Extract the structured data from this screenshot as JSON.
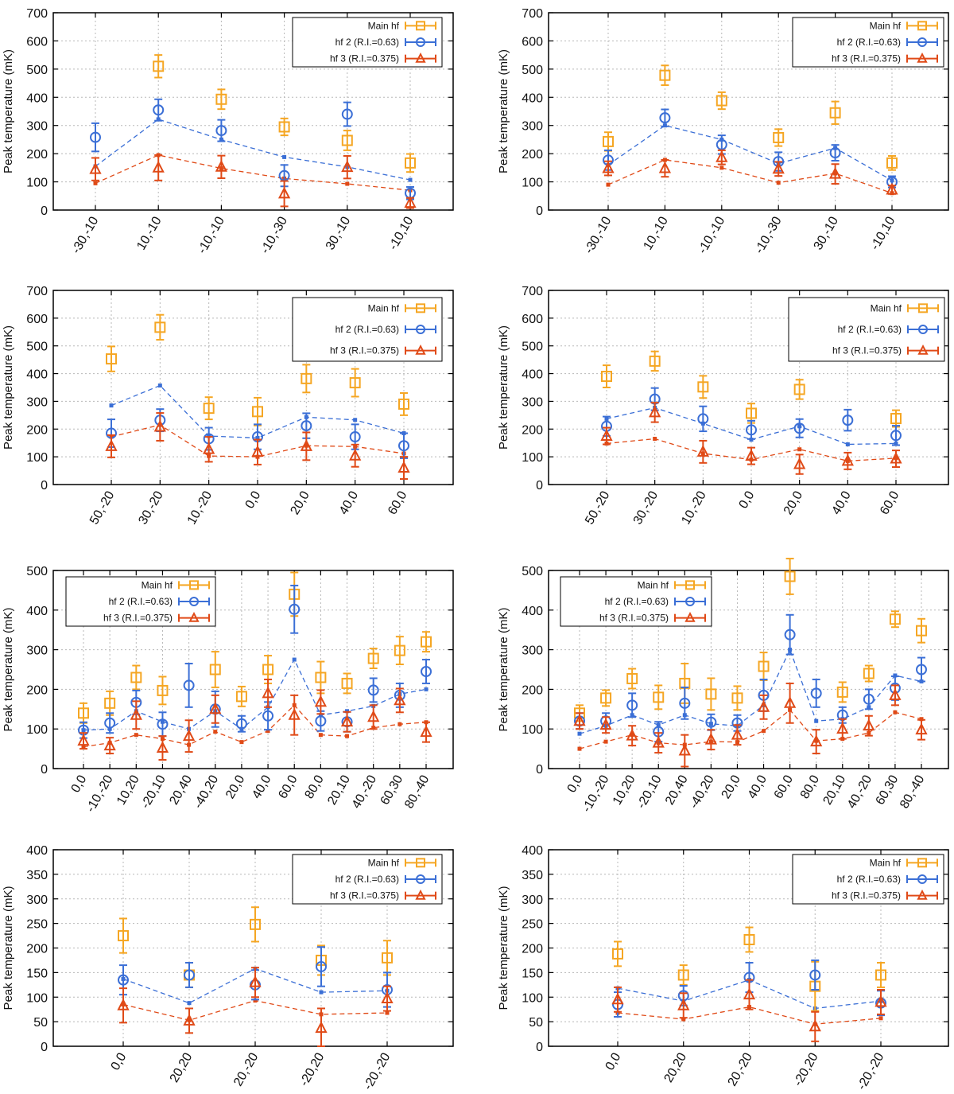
{
  "colors": {
    "main": "#f5a623",
    "hf2": "#3b6fd6",
    "hf3": "#e04a17",
    "grid": "#b8b8b8",
    "axis": "#000000"
  },
  "chart_data": [
    {
      "type": "scatter",
      "ylabel": "Peak temperature (mK)",
      "ylim": [
        0,
        700
      ],
      "yticks": [
        0,
        100,
        200,
        300,
        400,
        500,
        600,
        700
      ],
      "legend_position": "top-right",
      "categories": [
        "-30,-10",
        "10,-10",
        "-10,-10",
        "-10,-30",
        "30,-10",
        "-10,10"
      ],
      "series": [
        {
          "name": "Main hf",
          "key": "main",
          "marker": "square",
          "values": [
            null,
            510,
            393,
            295,
            247,
            167
          ],
          "errors": [
            null,
            40,
            35,
            30,
            35,
            32
          ]
        },
        {
          "name": "hf 2 (R.I.=0.63)",
          "key": "hf2",
          "marker": "circle",
          "values": [
            258,
            355,
            282,
            122,
            340,
            60
          ],
          "errors": [
            50,
            38,
            38,
            38,
            42,
            22
          ],
          "model": [
            155,
            322,
            250,
            188,
            153,
            107
          ]
        },
        {
          "name": "hf 3 (R.I.=0.375)",
          "key": "hf3",
          "marker": "triangle",
          "values": [
            145,
            150,
            153,
            58,
            152,
            25
          ],
          "errors": [
            40,
            45,
            40,
            45,
            40,
            18
          ],
          "model": [
            95,
            195,
            148,
            112,
            93,
            70
          ]
        }
      ]
    },
    {
      "type": "scatter",
      "ylabel": "Peak temperature (mK)",
      "ylim": [
        0,
        700
      ],
      "yticks": [
        0,
        100,
        200,
        300,
        400,
        500,
        600,
        700
      ],
      "legend_position": "top-right",
      "categories": [
        "-30,-10",
        "10,-10",
        "-10,-10",
        "-10,-30",
        "30,-10",
        "-10,10"
      ],
      "series": [
        {
          "name": "Main hf",
          "key": "main",
          "marker": "square",
          "values": [
            243,
            478,
            388,
            257,
            345,
            167
          ],
          "errors": [
            33,
            35,
            30,
            30,
            40,
            25
          ]
        },
        {
          "name": "hf 2 (R.I.=0.63)",
          "key": "hf2",
          "marker": "circle",
          "values": [
            177,
            327,
            232,
            172,
            203,
            100
          ],
          "errors": [
            35,
            30,
            33,
            33,
            28,
            20
          ],
          "model": [
            160,
            300,
            250,
            165,
            220,
            105
          ]
        },
        {
          "name": "hf 3 (R.I.=0.375)",
          "key": "hf3",
          "marker": "triangle",
          "values": [
            148,
            148,
            187,
            146,
            128,
            72
          ],
          "errors": [
            25,
            30,
            25,
            25,
            35,
            15
          ],
          "model": [
            90,
            178,
            150,
            97,
            130,
            60
          ]
        }
      ]
    },
    {
      "type": "scatter",
      "ylabel": "Peak temperature (mK)",
      "ylim": [
        0,
        700
      ],
      "yticks": [
        0,
        100,
        200,
        300,
        400,
        500,
        600,
        700
      ],
      "legend_position": "top-right",
      "categories": [
        "50,-20",
        "30,-20",
        "10,-20",
        "0,0",
        "20,0",
        "40,0",
        "60,0"
      ],
      "series": [
        {
          "name": "Main hf",
          "key": "main",
          "marker": "square",
          "values": [
            453,
            567,
            275,
            263,
            382,
            367,
            290
          ],
          "errors": [
            45,
            45,
            40,
            50,
            50,
            50,
            40
          ]
        },
        {
          "name": "hf 2 (R.I.=0.63)",
          "key": "hf2",
          "marker": "circle",
          "values": [
            185,
            232,
            165,
            172,
            212,
            172,
            140
          ],
          "errors": [
            50,
            40,
            40,
            45,
            45,
            45,
            45
          ],
          "model": [
            285,
            357,
            175,
            168,
            243,
            233,
            185
          ]
        },
        {
          "name": "hf 3 (R.I.=0.375)",
          "key": "hf3",
          "marker": "triangle",
          "values": [
            138,
            208,
            127,
            117,
            138,
            104,
            60
          ],
          "errors": [
            40,
            50,
            45,
            45,
            50,
            40,
            40
          ],
          "model": [
            172,
            215,
            103,
            100,
            140,
            137,
            112
          ]
        }
      ]
    },
    {
      "type": "scatter",
      "ylabel": "Peak temperature (mK)",
      "ylim": [
        0,
        700
      ],
      "yticks": [
        0,
        100,
        200,
        300,
        400,
        500,
        600,
        700
      ],
      "legend_position": "top-right",
      "categories": [
        "50,-20",
        "30,-20",
        "10,-20",
        "0,0",
        "20,0",
        "40,0",
        "60,0"
      ],
      "series": [
        {
          "name": "Main hf",
          "key": "main",
          "marker": "square",
          "values": [
            390,
            445,
            352,
            257,
            343,
            null,
            238
          ],
          "errors": [
            40,
            35,
            40,
            35,
            35,
            null,
            30
          ]
        },
        {
          "name": "hf 2 (R.I.=0.63)",
          "key": "hf2",
          "marker": "circle",
          "values": [
            210,
            308,
            237,
            197,
            203,
            232,
            177
          ],
          "errors": [
            35,
            40,
            45,
            33,
            33,
            38,
            35
          ],
          "model": [
            237,
            277,
            220,
            162,
            210,
            145,
            148
          ]
        },
        {
          "name": "hf 3 (R.I.=0.375)",
          "key": "hf3",
          "marker": "triangle",
          "values": [
            175,
            260,
            118,
            103,
            73,
            85,
            93
          ],
          "errors": [
            30,
            35,
            40,
            30,
            35,
            30,
            30
          ],
          "model": [
            148,
            165,
            112,
            90,
            127,
            85,
            95
          ]
        }
      ]
    },
    {
      "type": "scatter",
      "ylabel": "Peak temperature (mK)",
      "ylim": [
        0,
        500
      ],
      "yticks": [
        0,
        100,
        200,
        300,
        400,
        500
      ],
      "legend_position": "top-center",
      "categories": [
        "0,0",
        "-10,-20",
        "10,20",
        "-20,10",
        "20,40",
        "-40,20",
        "20,0",
        "40,0",
        "60,0",
        "80,0",
        "20,10",
        "40,-20",
        "60,30",
        "80,-40"
      ],
      "series": [
        {
          "name": "Main hf",
          "key": "main",
          "marker": "square",
          "values": [
            140,
            165,
            230,
            197,
            250,
            182,
            250,
            440,
            230,
            215,
            278,
            298,
            320
          ],
          "errors": [
            25,
            30,
            30,
            35,
            45,
            25,
            35,
            55,
            40,
            25,
            25,
            35,
            25
          ],
          "xi": [
            0,
            1,
            2,
            3,
            5,
            6,
            7,
            8,
            9,
            10,
            11,
            12,
            13
          ]
        },
        {
          "name": "hf 2 (R.I.=0.63)",
          "key": "hf2",
          "marker": "circle",
          "values": [
            97,
            115,
            167,
            112,
            210,
            150,
            113,
            133,
            402,
            120,
            118,
            198,
            185,
            245
          ],
          "errors": [
            20,
            25,
            30,
            30,
            55,
            45,
            20,
            35,
            60,
            25,
            25,
            30,
            30,
            30
          ],
          "model": [
            97,
            100,
            145,
            118,
            100,
            145,
            100,
            155,
            275,
            135,
            145,
            158,
            188,
            200
          ]
        },
        {
          "name": "hf 3 (R.I.=0.375)",
          "key": "hf3",
          "marker": "triangle",
          "values": [
            70,
            58,
            135,
            52,
            82,
            150,
            190,
            135,
            168,
            118,
            130,
            172,
            92
          ],
          "errors": [
            20,
            20,
            35,
            30,
            40,
            35,
            35,
            50,
            30,
            25,
            30,
            30,
            25
          ],
          "xi": [
            0,
            1,
            2,
            3,
            4,
            5,
            7,
            8,
            9,
            10,
            11,
            12,
            13
          ],
          "model": [
            55,
            65,
            85,
            75,
            60,
            93,
            67,
            95,
            160,
            85,
            82,
            103,
            112,
            117
          ]
        }
      ]
    },
    {
      "type": "scatter",
      "ylabel": "Peak temperature (mK)",
      "ylim": [
        0,
        500
      ],
      "yticks": [
        0,
        100,
        200,
        300,
        400,
        500
      ],
      "legend_position": "top-center",
      "categories": [
        "0,0",
        "-10,-20",
        "10,20",
        "-20,10",
        "20,40",
        "-40,20",
        "20,0",
        "40,0",
        "60,0",
        "80,0",
        "20,10",
        "40,-20",
        "60,30",
        "80,-40"
      ],
      "series": [
        {
          "name": "Main hf",
          "key": "main",
          "marker": "square",
          "values": [
            140,
            178,
            227,
            180,
            215,
            188,
            178,
            258,
            485,
            193,
            240,
            377,
            348
          ],
          "errors": [
            20,
            20,
            25,
            30,
            50,
            40,
            30,
            35,
            45,
            25,
            20,
            20,
            30
          ],
          "xi": [
            0,
            1,
            2,
            3,
            4,
            5,
            6,
            7,
            8,
            10,
            11,
            12,
            13
          ]
        },
        {
          "name": "hf 2 (R.I.=0.63)",
          "key": "hf2",
          "marker": "circle",
          "values": [
            120,
            120,
            160,
            93,
            165,
            117,
            115,
            185,
            338,
            190,
            135,
            175,
            203,
            250
          ],
          "errors": [
            20,
            20,
            30,
            25,
            40,
            20,
            20,
            40,
            50,
            35,
            20,
            25,
            30,
            30
          ],
          "model": [
            88,
            108,
            135,
            110,
            135,
            113,
            108,
            160,
            300,
            120,
            125,
            155,
            235,
            220
          ]
        },
        {
          "name": "hf 3 (R.I.=0.375)",
          "key": "hf3",
          "marker": "triangle",
          "values": [
            120,
            110,
            83,
            65,
            45,
            73,
            85,
            155,
            165,
            68,
            100,
            108,
            185,
            98
          ],
          "errors": [
            20,
            20,
            25,
            25,
            40,
            25,
            25,
            30,
            50,
            30,
            25,
            25,
            25,
            25
          ],
          "model": [
            50,
            68,
            85,
            65,
            60,
            68,
            67,
            95,
            148,
            70,
            75,
            90,
            142,
            125
          ]
        }
      ]
    },
    {
      "type": "scatter",
      "ylabel": "Peak temperature (mK)",
      "ylim": [
        0,
        400
      ],
      "yticks": [
        0,
        50,
        100,
        150,
        200,
        250,
        300,
        350,
        400
      ],
      "legend_position": "top-right",
      "categories": [
        "0,0",
        "20,20",
        "20,-20",
        "-20,20",
        "-20,-20"
      ],
      "series": [
        {
          "name": "Main hf",
          "key": "main",
          "marker": "square",
          "values": [
            225,
            145,
            248,
            175,
            180
          ],
          "errors": [
            35,
            25,
            35,
            30,
            35
          ]
        },
        {
          "name": "hf 2 (R.I.=0.63)",
          "key": "hf2",
          "marker": "circle",
          "values": [
            135,
            145,
            125,
            162,
            115
          ],
          "errors": [
            30,
            25,
            30,
            40,
            35
          ],
          "model": [
            137,
            88,
            158,
            110,
            113
          ]
        },
        {
          "name": "hf 3 (R.I.=0.375)",
          "key": "hf3",
          "marker": "triangle",
          "values": [
            83,
            52,
            130,
            37,
            97
          ],
          "errors": [
            35,
            25,
            30,
            40,
            25
          ],
          "model": [
            85,
            53,
            93,
            65,
            68
          ]
        }
      ]
    },
    {
      "type": "scatter",
      "ylabel": "Peak temperature (mK)",
      "ylim": [
        0,
        400
      ],
      "yticks": [
        0,
        50,
        100,
        150,
        200,
        250,
        300,
        350,
        400
      ],
      "legend_position": "top-right",
      "categories": [
        "0,0",
        "20,20",
        "20,-20",
        "-20,20",
        "-20,-20"
      ],
      "series": [
        {
          "name": "Main hf",
          "key": "main",
          "marker": "square",
          "values": [
            188,
            145,
            217,
            122,
            145
          ],
          "errors": [
            25,
            20,
            25,
            50,
            25
          ]
        },
        {
          "name": "hf 2 (R.I.=0.63)",
          "key": "hf2",
          "marker": "circle",
          "values": [
            85,
            103,
            140,
            145,
            88
          ],
          "errors": [
            25,
            20,
            30,
            30,
            25
          ],
          "model": [
            118,
            92,
            135,
            77,
            92
          ]
        },
        {
          "name": "hf 3 (R.I.=0.375)",
          "key": "hf3",
          "marker": "triangle",
          "values": [
            95,
            83,
            105,
            40,
            90
          ],
          "errors": [
            25,
            25,
            30,
            30,
            25
          ],
          "model": [
            68,
            55,
            80,
            45,
            57
          ]
        }
      ]
    }
  ]
}
